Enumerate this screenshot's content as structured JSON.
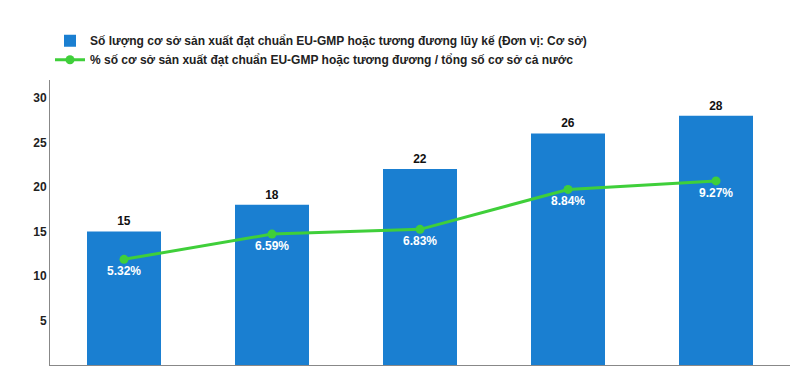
{
  "chart_data": {
    "type": "bar",
    "categories": [
      null,
      null,
      null,
      null,
      null
    ],
    "series": [
      {
        "name": "Số lượng cơ sở sản xuất đạt chuẩn EU-GMP hoặc tương đương lũy kế (Đơn vị: Cơ sở)",
        "type": "bar",
        "color": "#1a7fd1",
        "values": [
          15,
          18,
          22,
          26,
          28
        ]
      },
      {
        "name": "% số cơ sở sản xuất đạt chuẩn EU-GMP hoặc tương đương / tổng số cơ sở cả nước",
        "type": "line",
        "axis": "y2",
        "color": "#3fcf3a",
        "marker": "circle",
        "values": [
          5.32,
          6.59,
          6.83,
          8.84,
          9.27
        ],
        "value_labels": [
          "5.32%",
          "6.59%",
          "6.83%",
          "8.84%",
          "9.27%"
        ]
      }
    ],
    "ylim": [
      0,
      32
    ],
    "yticks": [
      5,
      10,
      15,
      20,
      25,
      30
    ],
    "y2lim": [
      0,
      14.35
    ],
    "data_labels": true,
    "grid": false,
    "legend": "top left",
    "tick_labels": "y"
  }
}
